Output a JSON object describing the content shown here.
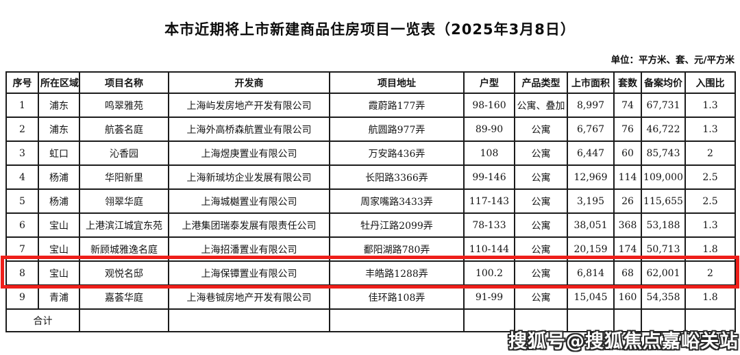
{
  "page": {
    "title": "本市近期将上市新建商品住房项目一览表（2025年3月8日）",
    "unit_note": "单位：平方米、套、元/平方米",
    "watermark": "搜狐号@搜狐焦点嘉峪关站"
  },
  "colors": {
    "highlight_red": "#ee1f1a",
    "table_border": "#1b1b1b"
  },
  "table": {
    "headers": [
      "序号",
      "所在区域",
      "项目名称",
      "开发商",
      "项目地址",
      "户型",
      "产品类型",
      "上市面积",
      "套数",
      "备案均价",
      "入围比"
    ],
    "rows": [
      [
        "1",
        "浦东",
        "鸣翠雅苑",
        "上海屿发房地产开发有限公司",
        "霞蔚路177弄",
        "98-160",
        "公寓、叠加",
        "8,997",
        "74",
        "67,731",
        "1.3"
      ],
      [
        "2",
        "浦东",
        "航荟名庭",
        "上海外高桥森航置业有限公司",
        "航圆路977弄",
        "89-90",
        "公寓",
        "6,767",
        "76",
        "46,722",
        "1.3"
      ],
      [
        "3",
        "虹口",
        "沁香园",
        "上海煜庚置业有限公司",
        "万安路436弄",
        "108",
        "公寓",
        "6,447",
        "60",
        "85,743",
        "2"
      ],
      [
        "4",
        "杨浦",
        "华阳新里",
        "上海新珹坊企业发展有限公司",
        "长阳路3366弄",
        "99-146",
        "公寓",
        "12,969",
        "114",
        "109,000",
        "2.5"
      ],
      [
        "5",
        "杨浦",
        "翎翠华庭",
        "上海城樾置业有限公司",
        "周家嘴路3433弄",
        "117-143",
        "公寓",
        "3,195",
        "26",
        "115,655",
        "2.5"
      ],
      [
        "6",
        "宝山",
        "上港滨江城宜东苑",
        "上港集团瑞泰发展有限责任公司",
        "牡丹江路2099弄",
        "78-133",
        "公寓",
        "38,051",
        "368",
        "53,188",
        "1.3"
      ],
      [
        "7",
        "宝山",
        "新顾城雅逸名庭",
        "上海招潘置业有限公司",
        "鄱阳湖路780弄",
        "110-144",
        "公寓",
        "20,159",
        "174",
        "50,713",
        "1.8"
      ],
      [
        "8",
        "宝山",
        "观悦名邸",
        "上海保镡置业有限公司",
        "丰皓路1288弄",
        "100.2",
        "公寓",
        "6,814",
        "68",
        "62,001",
        "2"
      ],
      [
        "9",
        "青浦",
        "嘉荟华庭",
        "上海巷铖房地产开发有限公司",
        "佳环路108弄",
        "91-99",
        "公寓",
        "15,045",
        "160",
        "54,358",
        "1.8"
      ]
    ],
    "highlighted_row_index": 7,
    "total_row": {
      "label": "合计"
    }
  }
}
